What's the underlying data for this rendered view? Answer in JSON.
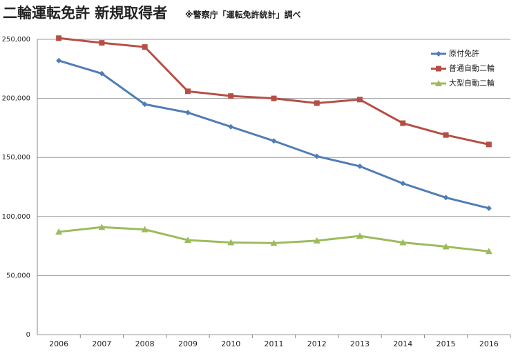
{
  "chart_data": {
    "type": "line",
    "title": "二輪運転免許 新規取得者",
    "subtitle": "※警察庁「運転免許統計」調べ",
    "categories": [
      "2006",
      "2007",
      "2008",
      "2009",
      "2010",
      "2011",
      "2012",
      "2013",
      "2014",
      "2015",
      "2016"
    ],
    "series": [
      {
        "name": "原付免許",
        "color": "#4f7db5",
        "marker": "diamond",
        "values": [
          232000,
          221000,
          195000,
          188000,
          176000,
          164000,
          151000,
          142500,
          128000,
          116000,
          107000
        ]
      },
      {
        "name": "普通自動二輪",
        "color": "#b54f45",
        "marker": "square",
        "values": [
          251000,
          247000,
          243500,
          206000,
          202000,
          200000,
          196000,
          199000,
          179000,
          169000,
          161000
        ]
      },
      {
        "name": "大型自動二輪",
        "color": "#9cbb5a",
        "marker": "triangle",
        "values": [
          87000,
          91000,
          89000,
          80000,
          78000,
          77500,
          79500,
          83500,
          78000,
          74500,
          70500
        ]
      }
    ],
    "ylim": [
      0,
      250000
    ],
    "yticks": [
      0,
      {
        "value": 50000,
        "label": "50,000"
      },
      {
        "value": 100000,
        "label": "100,000"
      },
      {
        "value": 150000,
        "label": "150,000"
      },
      {
        "value": 200000,
        "label": "200,000"
      },
      {
        "value": 250000,
        "label": "250,000"
      }
    ],
    "grid": true,
    "legend": "top-right"
  }
}
